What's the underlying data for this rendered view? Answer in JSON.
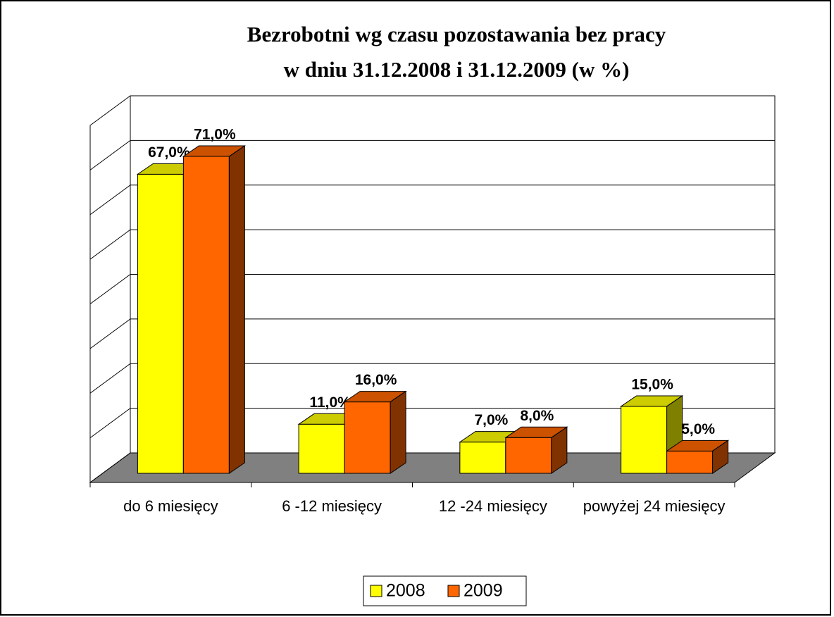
{
  "chart_data": {
    "type": "bar3d",
    "title": [
      "Bezrobotni wg czasu pozostawania bez pracy",
      "w dniu 31.12.2008 i 31.12.2009 (w %)"
    ],
    "categories": [
      "do 6 miesięcy",
      "6 -12 miesięcy",
      "12 -24 miesięcy",
      "powyżej 24 miesięcy"
    ],
    "series": [
      {
        "name": "2008",
        "color": "#ffff00",
        "values": [
          67,
          11,
          7,
          15
        ],
        "value_labels": [
          "67,0%",
          "11,0%",
          "7,0%",
          "15,0%"
        ]
      },
      {
        "name": "2009",
        "color": "#ff6600",
        "values": [
          71,
          16,
          8,
          5
        ],
        "value_labels": [
          "71,0%",
          "16,0%",
          "8,0%",
          "5,0%"
        ]
      }
    ],
    "ylim": [
      0,
      80
    ],
    "yticks": [
      0,
      10,
      20,
      30,
      40,
      50,
      60,
      70,
      80
    ],
    "grid": true,
    "legend": "bottom"
  }
}
